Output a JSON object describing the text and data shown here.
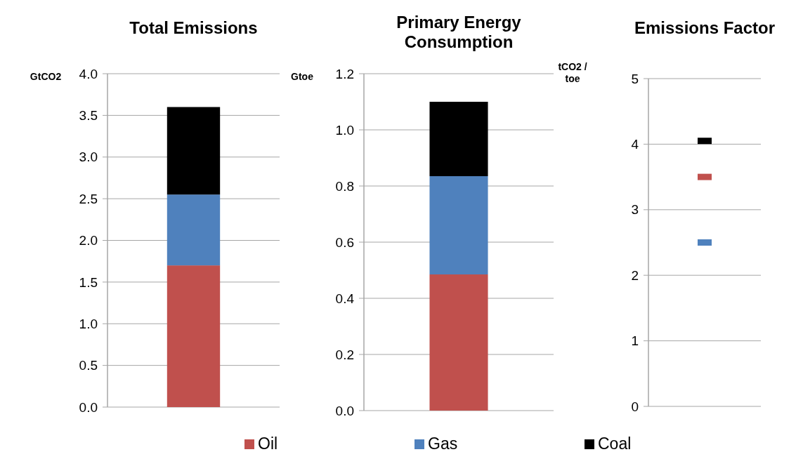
{
  "chart_data": [
    {
      "type": "bar",
      "title": "Total Emissions",
      "ylabel": "GtCO2",
      "categories": [
        null
      ],
      "stacked": true,
      "ylim": [
        0,
        4
      ],
      "yticks": [
        {
          "value": 0,
          "label": "0.0"
        },
        {
          "value": 0.5,
          "label": "0.5"
        },
        {
          "value": 1,
          "label": "1.0"
        },
        {
          "value": 1.5,
          "label": "1.5"
        },
        {
          "value": 2,
          "label": "2.0"
        },
        {
          "value": 2.5,
          "label": "2.5"
        },
        {
          "value": 3,
          "label": "3.0"
        },
        {
          "value": 3.5,
          "label": "3.5"
        },
        {
          "value": 4,
          "label": "4.0"
        }
      ],
      "grid": "y",
      "legend": "bottom",
      "series": [
        {
          "name": "Oil",
          "color": "#c0504d",
          "values": [
            1.7
          ]
        },
        {
          "name": "Gas",
          "color": "#4f81bd",
          "values": [
            0.85
          ]
        },
        {
          "name": "Coal",
          "color": "#000000",
          "values": [
            1.05
          ]
        }
      ]
    },
    {
      "type": "bar",
      "title": "Primary Energy Consumption",
      "ylabel": "Gtoe",
      "categories": [
        null
      ],
      "stacked": true,
      "ylim": [
        0,
        1.2
      ],
      "yticks": [
        {
          "value": 0,
          "label": "0.0"
        },
        {
          "value": 0.2,
          "label": "0.2"
        },
        {
          "value": 0.4,
          "label": "0.4"
        },
        {
          "value": 0.6,
          "label": "0.6"
        },
        {
          "value": 0.8,
          "label": "0.8"
        },
        {
          "value": 1,
          "label": "1.0"
        },
        {
          "value": 1.2,
          "label": "1.2"
        }
      ],
      "grid": "y",
      "series": [
        {
          "color": "#c0504d",
          "values": [
            0.485
          ]
        },
        {
          "color": "#4f81bd",
          "values": [
            0.35
          ]
        },
        {
          "color": "#000000",
          "values": [
            0.265
          ]
        }
      ]
    },
    {
      "type": "scatter",
      "title": "Emissions Factor",
      "ylabel": "tCO2 / toe",
      "categories": [
        null
      ],
      "ylim": [
        0,
        5
      ],
      "yticks": [
        0,
        1,
        2,
        3,
        4,
        5
      ],
      "grid": "y",
      "series": [
        {
          "color": "#c0504d",
          "values": [
            3.5
          ]
        },
        {
          "color": "#4f81bd",
          "values": [
            2.5
          ]
        },
        {
          "color": "#000000",
          "values": [
            4.05
          ]
        }
      ]
    }
  ]
}
